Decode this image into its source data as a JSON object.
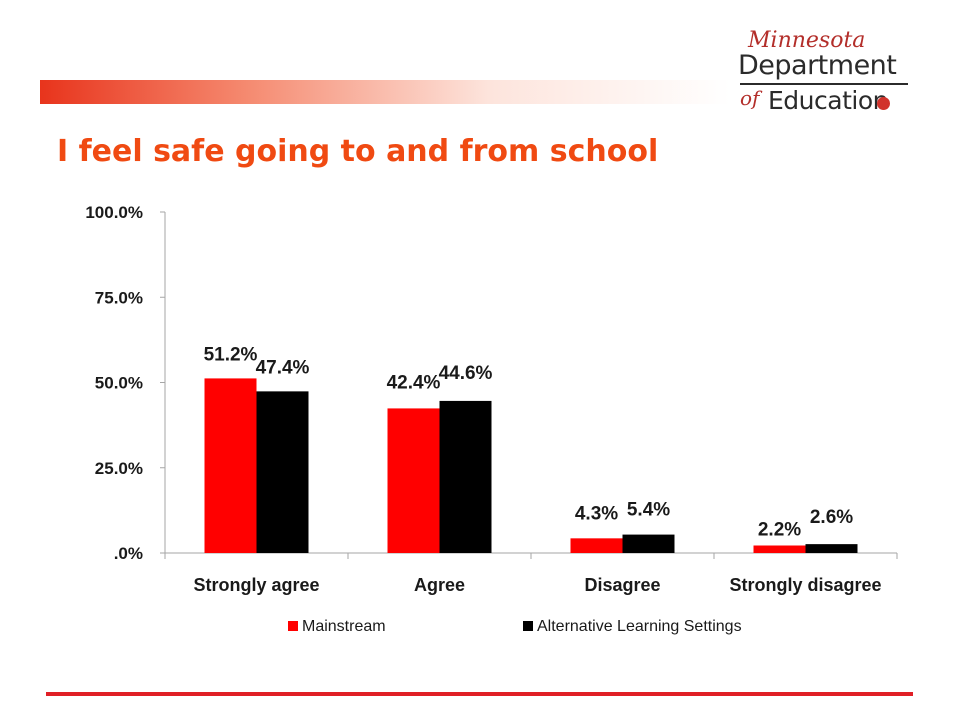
{
  "title": "I feel safe going to and from school",
  "logo": {
    "script_text": "Minnesota",
    "department_text": "Department",
    "of_text": "of",
    "education_text": "Education"
  },
  "colors": {
    "title": "#f04a12",
    "mainstream": "#ff0000",
    "alternative": "#000000",
    "accent_rule": "#e01f26"
  },
  "chart_data": {
    "type": "bar",
    "categories": [
      "Strongly agree",
      "Agree",
      "Disagree",
      "Strongly disagree"
    ],
    "series": [
      {
        "name": "Mainstream",
        "values": [
          51.2,
          42.4,
          4.3,
          2.2
        ],
        "labels": [
          "51.2%",
          "42.4%",
          "4.3%",
          "2.2%"
        ],
        "color": "#ff0000"
      },
      {
        "name": "Alternative Learning Settings",
        "values": [
          47.4,
          44.6,
          5.4,
          2.6
        ],
        "labels": [
          "47.4%",
          "44.6%",
          "5.4%",
          "2.6%"
        ],
        "color": "#000000"
      }
    ],
    "ylim": [
      0,
      100
    ],
    "yticks": [
      0,
      25,
      50,
      75,
      100
    ],
    "ytick_labels": [
      ".0%",
      "25.0%",
      "50.0%",
      "75.0%",
      "100.0%"
    ],
    "grid": false,
    "legend_position": "bottom"
  }
}
